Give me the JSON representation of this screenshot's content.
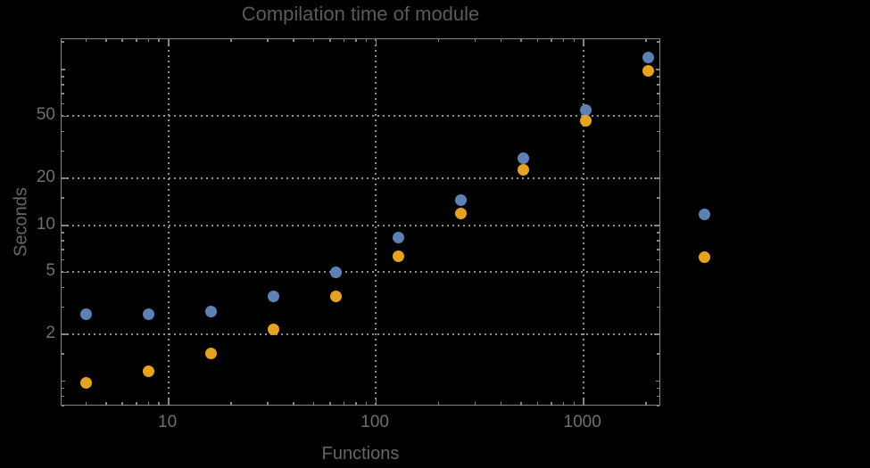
{
  "chart_data": {
    "type": "scatter",
    "title": "Compilation time of module",
    "xlabel": "Functions",
    "ylabel": "Seconds",
    "x_scale": "log",
    "y_scale": "log",
    "xlim": [
      3.06,
      2375
    ],
    "ylim": [
      0.687,
      155.7
    ],
    "x_ticks": [
      10,
      100,
      1000
    ],
    "x_tick_labels": [
      "10",
      "100",
      "1000"
    ],
    "y_ticks": [
      2,
      5,
      10,
      20,
      50
    ],
    "y_tick_labels": [
      "2",
      "5",
      "10",
      "20",
      "50"
    ],
    "grid": "dotted",
    "legend_position": "right-outside",
    "x": [
      4,
      8,
      16,
      32,
      64,
      128,
      256,
      512,
      1024,
      2048
    ],
    "series": [
      {
        "name": "series-blue",
        "color": "#5E81B5",
        "values": [
          2.7,
          2.7,
          2.8,
          3.5,
          5.0,
          8.3,
          14.4,
          27,
          55,
          119
        ]
      },
      {
        "name": "series-orange",
        "color": "#E6A221",
        "values": [
          0.98,
          1.15,
          1.5,
          2.15,
          3.5,
          6.3,
          11.9,
          22.7,
          46.5,
          97
        ]
      }
    ],
    "legend_markers": [
      {
        "series": "series-blue",
        "color": "#5E81B5"
      },
      {
        "series": "series-orange",
        "color": "#E6A221"
      }
    ],
    "colors": {
      "background": "#000000",
      "frame": "#858585",
      "grid": "#8f8f8f",
      "title_text": "#5a5a5a",
      "tick_text": "#6f6f6f",
      "axis_label_text": "#666666"
    }
  }
}
